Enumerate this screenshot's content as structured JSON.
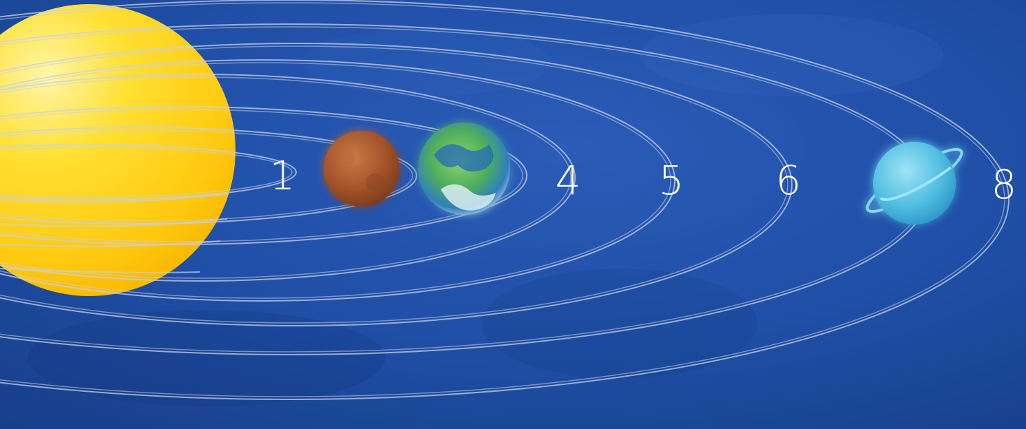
{
  "colors": {
    "background": "#1c4a9c",
    "orbit": "#c9cfe6",
    "sun": "#ffd21a",
    "planet_2": "#a8552a",
    "planet_3": "#5cb35a",
    "planet_7": "#5fc8e8",
    "label": "#ffffff"
  },
  "labels": {
    "orbit_1": "1",
    "orbit_4": "4",
    "orbit_5": "5",
    "orbit_6": "6",
    "orbit_8": "8"
  },
  "icons": {
    "sun": "sun-icon",
    "planet_2": "mars-like-planet-icon",
    "planet_3": "earth-like-planet-icon",
    "planet_7": "ringed-ice-planet-icon"
  }
}
